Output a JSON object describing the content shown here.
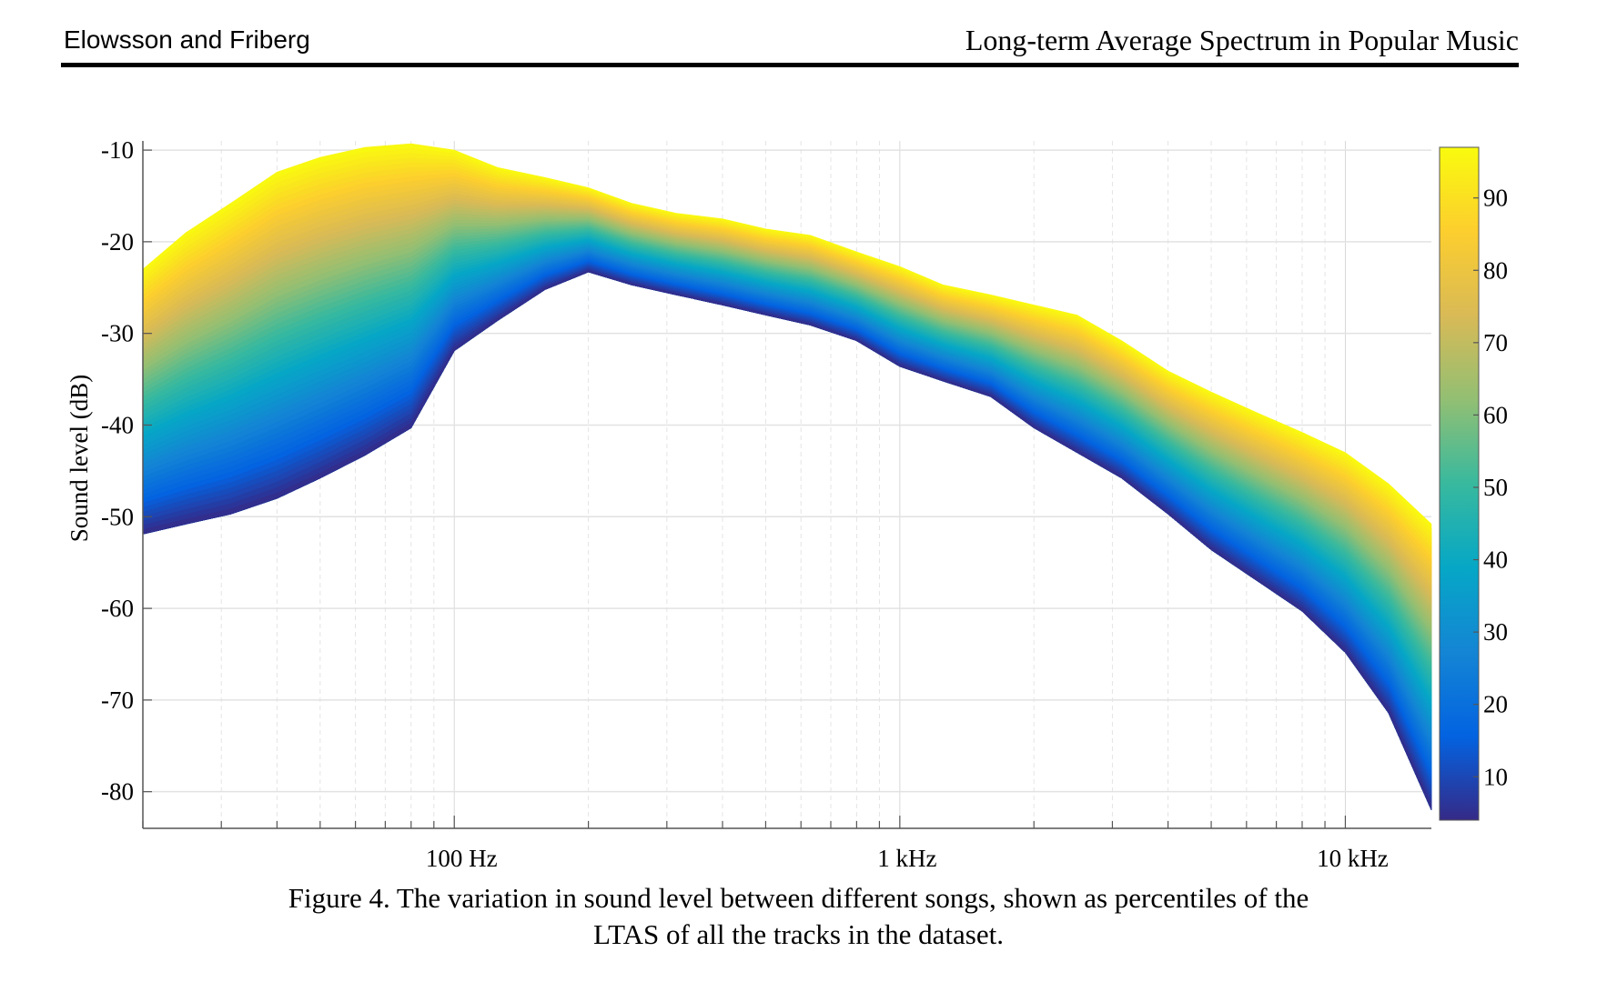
{
  "header": {
    "authors": "Elowsson and Friberg",
    "title": "Long-term Average Spectrum in Popular Music"
  },
  "caption": {
    "line1": "Figure 4. The variation in sound level between different songs, shown as percentiles of the",
    "line2": "LTAS of all the tracks in the dataset."
  },
  "chart_data": {
    "type": "area",
    "title": "",
    "xlabel": "",
    "ylabel": "Sound level (dB)",
    "xscale": "log",
    "xlim": [
      20,
      15600
    ],
    "ylim": [
      -84,
      -9
    ],
    "grid": true,
    "x_ticks": [
      {
        "value": 100,
        "label": "100 Hz"
      },
      {
        "value": 1000,
        "label": "1 kHz"
      },
      {
        "value": 10000,
        "label": "10 kHz"
      }
    ],
    "y_ticks": [
      {
        "value": -10,
        "label": "-10"
      },
      {
        "value": -20,
        "label": "-20"
      },
      {
        "value": -30,
        "label": "-30"
      },
      {
        "value": -40,
        "label": "-40"
      },
      {
        "value": -50,
        "label": "-50"
      },
      {
        "value": -60,
        "label": "-60"
      },
      {
        "value": -70,
        "label": "-70"
      },
      {
        "value": -80,
        "label": "-80"
      }
    ],
    "x": [
      20,
      25,
      31.5,
      40,
      50,
      63,
      80,
      100,
      125,
      160,
      200,
      250,
      315,
      400,
      500,
      630,
      800,
      1000,
      1250,
      1600,
      2000,
      2500,
      3150,
      4000,
      5000,
      6300,
      8000,
      10000,
      12500,
      15600
    ],
    "upper_percentile_level": [
      -23,
      -19,
      -15.8,
      -12.4,
      -10.8,
      -9.7,
      -9.3,
      -10,
      -11.9,
      -13,
      -14.1,
      -15.8,
      -16.9,
      -17.5,
      -18.6,
      -19.3,
      -21.1,
      -22.7,
      -24.7,
      -25.8,
      -26.9,
      -28,
      -30.8,
      -34.1,
      -36.4,
      -38.6,
      -40.8,
      -43,
      -46.4,
      -50.8
    ],
    "lower_percentile_level": [
      -51.9,
      -50.8,
      -49.7,
      -48,
      -45.8,
      -43.3,
      -40.3,
      -31.9,
      -28.6,
      -25.2,
      -23.3,
      -24.7,
      -25.8,
      -26.9,
      -28,
      -29.1,
      -30.8,
      -33.6,
      -35.2,
      -36.9,
      -40.3,
      -43,
      -45.8,
      -49.7,
      -53.6,
      -56.9,
      -60.3,
      -64.8,
      -71.4,
      -82
    ],
    "colorbar": {
      "label": "",
      "range": [
        4,
        97
      ],
      "ticks": [
        {
          "value": 10,
          "label": "10"
        },
        {
          "value": 20,
          "label": "20"
        },
        {
          "value": 30,
          "label": "30"
        },
        {
          "value": 40,
          "label": "40"
        },
        {
          "value": 50,
          "label": "50"
        },
        {
          "value": 60,
          "label": "60"
        },
        {
          "value": 70,
          "label": "70"
        },
        {
          "value": 80,
          "label": "80"
        },
        {
          "value": 90,
          "label": "90"
        }
      ],
      "colormap": [
        "#352a87",
        "#0363e1",
        "#1485d4",
        "#06a7c6",
        "#38b99e",
        "#92bf73",
        "#d9ba56",
        "#fcce2e",
        "#f9fb0e"
      ]
    }
  }
}
